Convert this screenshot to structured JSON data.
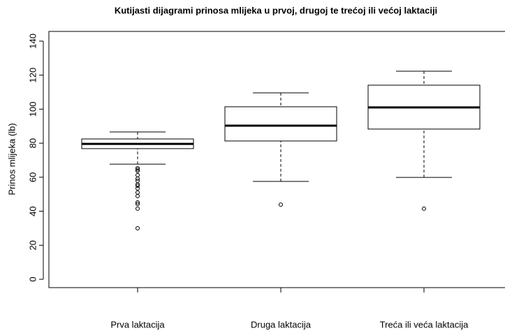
{
  "chart_data": {
    "type": "box",
    "title": "Kutijasti dijagrami prinosa mlijeka u prvoj, drugoj te trećoj ili većoj laktaciji",
    "ylabel": "Prinos mlijeka (lb)",
    "categories": [
      "Prva laktacija",
      "Druga laktacija",
      "Treća ili veća laktacija"
    ],
    "boxes": [
      {
        "whislo": 67.7,
        "q1": 76.8,
        "med": 79.6,
        "q3": 82.5,
        "whishi": 86.6,
        "fliers": [
          65.3,
          64.5,
          63.7,
          61.2,
          59.1,
          57.9,
          55.8,
          55.0,
          53.4,
          51.0,
          48.9,
          45.2,
          44.3,
          41.5,
          30.0
        ]
      },
      {
        "whislo": 57.5,
        "q1": 81.3,
        "med": 90.3,
        "q3": 101.4,
        "whishi": 109.6,
        "fliers": [
          43.9
        ]
      },
      {
        "whislo": 59.9,
        "q1": 88.3,
        "med": 101.0,
        "q3": 114.1,
        "whishi": 122.3,
        "fliers": [
          41.5
        ]
      }
    ],
    "color": "#000000",
    "ylim": [
      -4.9,
      145.7
    ],
    "yticks": [
      0,
      20,
      40,
      60,
      80,
      100,
      120,
      140
    ]
  }
}
